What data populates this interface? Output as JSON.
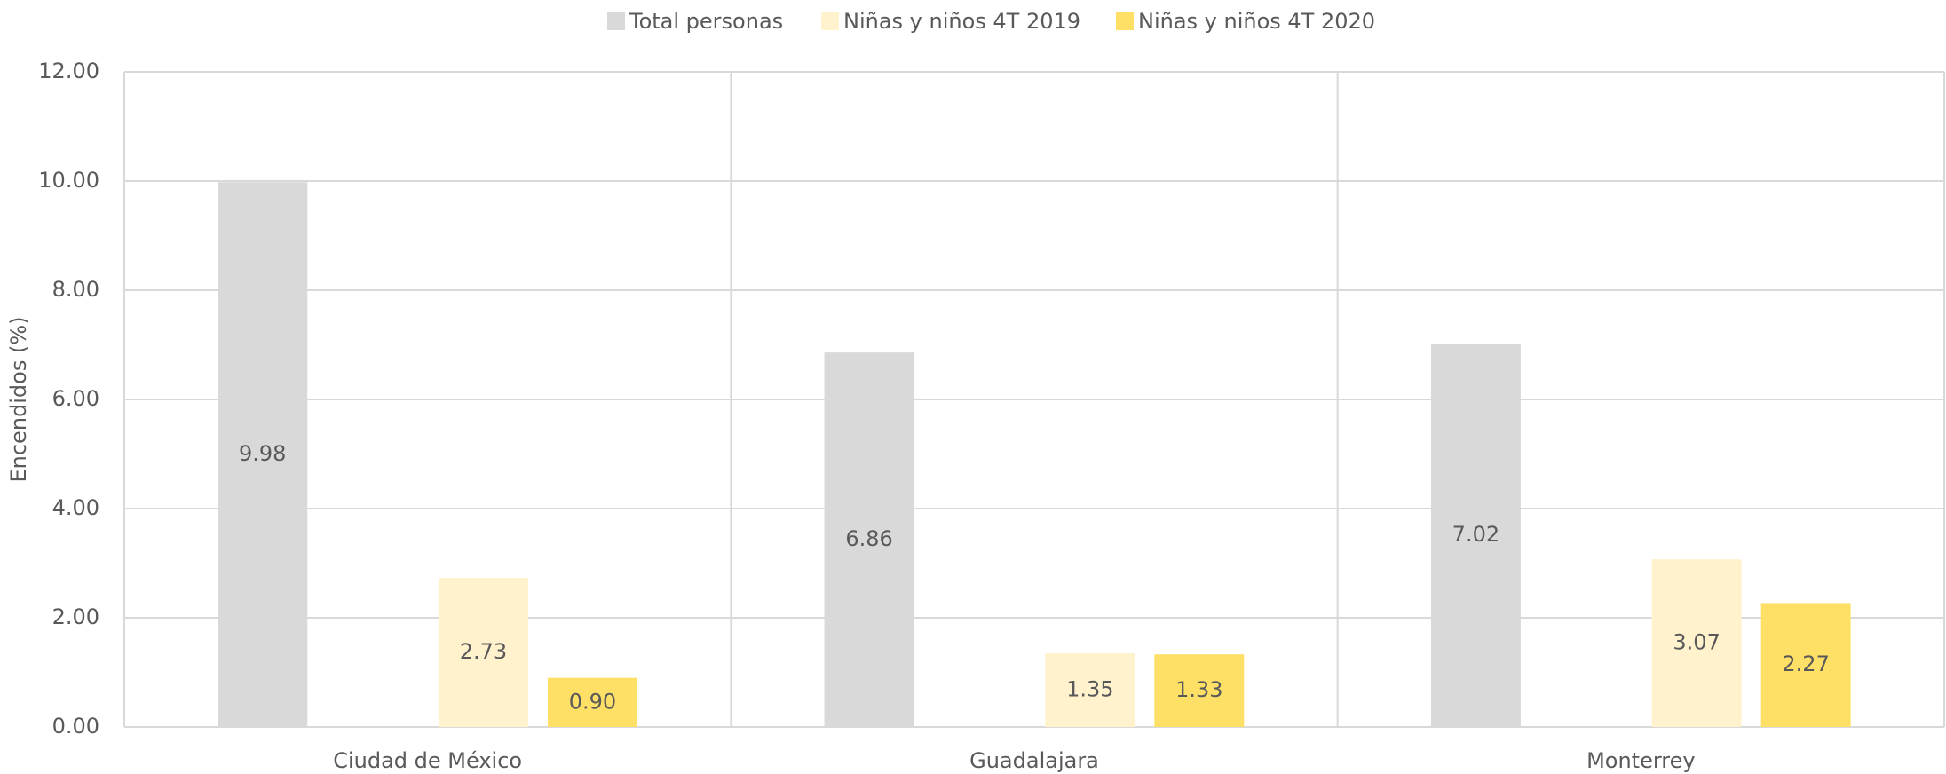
{
  "chart_data": {
    "type": "bar",
    "categories": [
      "Ciudad de México",
      "Guadalajara",
      "Monterrey"
    ],
    "series": [
      {
        "name": "Total personas",
        "color": "#d9d9d9",
        "values": [
          9.98,
          6.86,
          7.02
        ],
        "value_labels": [
          "9.98",
          "6.86",
          "7.02"
        ]
      },
      {
        "name": "Niñas y niños 4T 2019",
        "color": "#fff2cc",
        "values": [
          2.73,
          1.35,
          3.07
        ],
        "value_labels": [
          "2.73",
          "1.35",
          "3.07"
        ]
      },
      {
        "name": "Niñas y niños 4T 2020",
        "color": "#ffe066",
        "values": [
          0.9,
          1.33,
          2.27
        ],
        "value_labels": [
          "0.90",
          "1.33",
          "2.27"
        ]
      }
    ],
    "y_label": "Encendidos (%)",
    "ylim": [
      0,
      12
    ],
    "yticks": [
      {
        "value": 0,
        "label": "0.00"
      },
      {
        "value": 2,
        "label": "2.00"
      },
      {
        "value": 4,
        "label": "4.00"
      },
      {
        "value": 6,
        "label": "6.00"
      },
      {
        "value": 8,
        "label": "8.00"
      },
      {
        "value": 10,
        "label": "10.00"
      },
      {
        "value": 12,
        "label": "12.00"
      }
    ],
    "grid": true,
    "legend": "top"
  }
}
